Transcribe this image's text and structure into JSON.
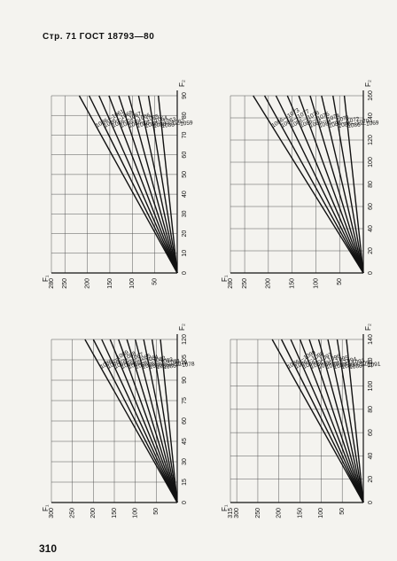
{
  "header": {
    "text": "Стр. 71 ГОСТ 18793—80"
  },
  "footer": {
    "page_number": "310"
  },
  "chart_data": [
    {
      "type": "line",
      "y_label": "F₁",
      "x_label": "F₂",
      "y_ticks": [
        "50",
        "100",
        "150",
        "200",
        "250",
        "280"
      ],
      "x_ticks": [
        "0",
        "10",
        "20",
        "30",
        "40",
        "50",
        "60",
        "70",
        "80",
        "90"
      ],
      "xlim": [
        0,
        90
      ],
      "ylim": [
        0,
        280
      ],
      "series": [
        {
          "name": "1086—1059",
          "x": [
            0,
            90
          ],
          "y": [
            0,
            42
          ]
        },
        {
          "name": "1086—1062",
          "x": [
            0,
            90
          ],
          "y": [
            0,
            64
          ]
        },
        {
          "name": "1086—1063",
          "x": [
            0,
            90
          ],
          "y": [
            0,
            86
          ]
        },
        {
          "name": "1086—1064",
          "x": [
            0,
            90
          ],
          "y": [
            0,
            108
          ]
        },
        {
          "name": "1086—1065",
          "x": [
            0,
            90
          ],
          "y": [
            0,
            130
          ]
        },
        {
          "name": "1086—1066",
          "x": [
            0,
            90
          ],
          "y": [
            0,
            152
          ]
        },
        {
          "name": "1086—1067",
          "x": [
            0,
            90
          ],
          "y": [
            0,
            174
          ]
        },
        {
          "name": "1086—1068",
          "x": [
            0,
            90
          ],
          "y": [
            0,
            196
          ]
        },
        {
          "name": "1086—1061",
          "x": [
            0,
            90
          ],
          "y": [
            0,
            218
          ]
        }
      ]
    },
    {
      "type": "line",
      "y_label": "F₁",
      "x_label": "F₂",
      "y_ticks": [
        "50",
        "100",
        "150",
        "200",
        "250",
        "280"
      ],
      "x_ticks": [
        "0",
        "20",
        "40",
        "60",
        "80",
        "100",
        "120",
        "140",
        "160"
      ],
      "xlim": [
        0,
        160
      ],
      "ylim": [
        0,
        280
      ],
      "series": [
        {
          "name": "1086—1069",
          "x": [
            0,
            160
          ],
          "y": [
            0,
            40
          ]
        },
        {
          "name": "1086—1070",
          "x": [
            0,
            160
          ],
          "y": [
            0,
            64
          ]
        },
        {
          "name": "1086—1072",
          "x": [
            0,
            160
          ],
          "y": [
            0,
            88
          ]
        },
        {
          "name": "1086—1071",
          "x": [
            0,
            160
          ],
          "y": [
            0,
            112
          ]
        },
        {
          "name": "1086—1074",
          "x": [
            0,
            160
          ],
          "y": [
            0,
            136
          ]
        },
        {
          "name": "1086—1075",
          "x": [
            0,
            160
          ],
          "y": [
            0,
            160
          ]
        },
        {
          "name": "1086—1076",
          "x": [
            0,
            160
          ],
          "y": [
            0,
            184
          ]
        },
        {
          "name": "1086—1077",
          "x": [
            0,
            160
          ],
          "y": [
            0,
            208
          ]
        },
        {
          "name": "1086—1073",
          "x": [
            0,
            160
          ],
          "y": [
            0,
            232
          ]
        }
      ]
    },
    {
      "type": "line",
      "y_label": "F₁",
      "x_label": "F₂",
      "y_ticks": [
        "50",
        "100",
        "150",
        "200",
        "250",
        "300"
      ],
      "x_ticks": [
        "0",
        "15",
        "30",
        "45",
        "60",
        "75",
        "90",
        "105",
        "120"
      ],
      "xlim": [
        0,
        120
      ],
      "ylim": [
        0,
        300
      ],
      "series": [
        {
          "name": "1086—1078",
          "x": [
            0,
            120
          ],
          "y": [
            0,
            40
          ]
        },
        {
          "name": "1086—1079",
          "x": [
            0,
            120
          ],
          "y": [
            0,
            60
          ]
        },
        {
          "name": "1086—1081",
          "x": [
            0,
            120
          ],
          "y": [
            0,
            80
          ]
        },
        {
          "name": "1086—1082",
          "x": [
            0,
            120
          ],
          "y": [
            0,
            100
          ]
        },
        {
          "name": "1086—1083",
          "x": [
            0,
            120
          ],
          "y": [
            0,
            120
          ]
        },
        {
          "name": "1086—1084",
          "x": [
            0,
            120
          ],
          "y": [
            0,
            140
          ]
        },
        {
          "name": "1086—1085",
          "x": [
            0,
            120
          ],
          "y": [
            0,
            160
          ]
        },
        {
          "name": "1086—1087",
          "x": [
            0,
            120
          ],
          "y": [
            0,
            180
          ]
        },
        {
          "name": "1086—1088",
          "x": [
            0,
            120
          ],
          "y": [
            0,
            200
          ]
        },
        {
          "name": "1086—1089",
          "x": [
            0,
            120
          ],
          "y": [
            0,
            220
          ]
        }
      ]
    },
    {
      "type": "line",
      "y_label": "F₁",
      "x_label": "F₂",
      "y_ticks": [
        "50",
        "100",
        "150",
        "200",
        "250",
        "300",
        "315"
      ],
      "x_ticks": [
        "0",
        "20",
        "40",
        "60",
        "80",
        "100",
        "120",
        "140"
      ],
      "xlim": [
        0,
        140
      ],
      "ylim": [
        0,
        315
      ],
      "series": [
        {
          "name": "1086—1091",
          "x": [
            0,
            140
          ],
          "y": [
            0,
            40
          ]
        },
        {
          "name": "1086—1092",
          "x": [
            0,
            140
          ],
          "y": [
            0,
            62
          ]
        },
        {
          "name": "1086—1093",
          "x": [
            0,
            140
          ],
          "y": [
            0,
            84
          ]
        },
        {
          "name": "1086—1094",
          "x": [
            0,
            140
          ],
          "y": [
            0,
            106
          ]
        },
        {
          "name": "1086—1095",
          "x": [
            0,
            140
          ],
          "y": [
            0,
            128
          ]
        },
        {
          "name": "1086—1096",
          "x": [
            0,
            140
          ],
          "y": [
            0,
            150
          ]
        },
        {
          "name": "1086—1097",
          "x": [
            0,
            140
          ],
          "y": [
            0,
            172
          ]
        },
        {
          "name": "1086—1098",
          "x": [
            0,
            140
          ],
          "y": [
            0,
            194
          ]
        },
        {
          "name": "1086—1099",
          "x": [
            0,
            140
          ],
          "y": [
            0,
            216
          ]
        }
      ]
    }
  ]
}
